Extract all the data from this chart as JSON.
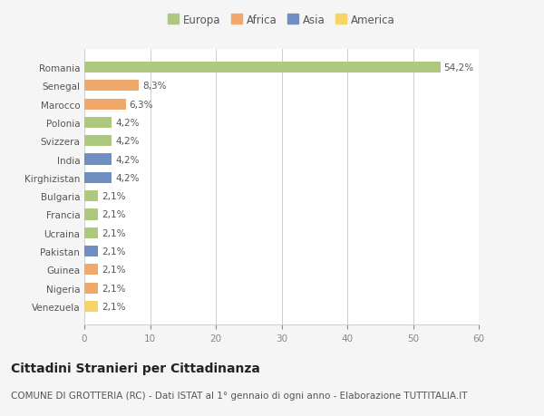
{
  "countries": [
    "Romania",
    "Senegal",
    "Marocco",
    "Polonia",
    "Svizzera",
    "India",
    "Kirghizistan",
    "Bulgaria",
    "Francia",
    "Ucraina",
    "Pakistan",
    "Guinea",
    "Nigeria",
    "Venezuela"
  ],
  "values": [
    54.2,
    8.3,
    6.3,
    4.2,
    4.2,
    4.2,
    4.2,
    2.1,
    2.1,
    2.1,
    2.1,
    2.1,
    2.1,
    2.1
  ],
  "labels": [
    "54,2%",
    "8,3%",
    "6,3%",
    "4,2%",
    "4,2%",
    "4,2%",
    "4,2%",
    "2,1%",
    "2,1%",
    "2,1%",
    "2,1%",
    "2,1%",
    "2,1%",
    "2,1%"
  ],
  "colors": [
    "#adc97e",
    "#f0a96a",
    "#f0a96a",
    "#adc97e",
    "#adc97e",
    "#6e8fbf",
    "#6e8fbf",
    "#adc97e",
    "#adc97e",
    "#adc97e",
    "#6e8fbf",
    "#f0a96a",
    "#f0a96a",
    "#f5d46a"
  ],
  "continents": [
    "Europa",
    "Africa",
    "Asia",
    "America"
  ],
  "legend_colors": [
    "#adc97e",
    "#f0a96a",
    "#6e8fbf",
    "#f5d46a"
  ],
  "xlim": [
    0,
    60
  ],
  "xticks": [
    0,
    10,
    20,
    30,
    40,
    50,
    60
  ],
  "title": "Cittadini Stranieri per Cittadinanza",
  "subtitle": "COMUNE DI GROTTERIA (RC) - Dati ISTAT al 1° gennaio di ogni anno - Elaborazione TUTTITALIA.IT",
  "bg_color": "#f5f5f5",
  "bar_bg_color": "#ffffff",
  "grid_color": "#cccccc",
  "title_fontsize": 10,
  "subtitle_fontsize": 7.5,
  "label_fontsize": 7.5,
  "tick_fontsize": 7.5,
  "legend_fontsize": 8.5
}
